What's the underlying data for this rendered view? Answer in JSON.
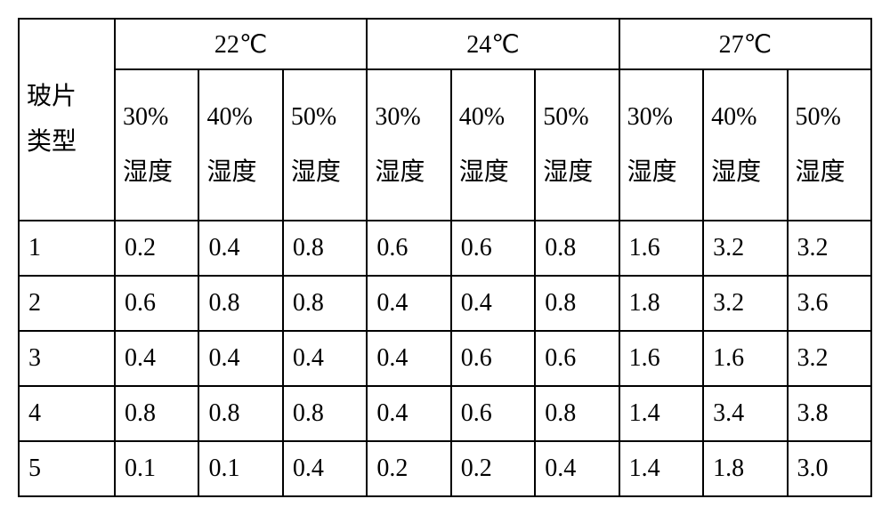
{
  "table": {
    "row_label": "玻片\n类型",
    "temperatures": [
      "22℃",
      "24℃",
      "27℃"
    ],
    "humidities": [
      "30%\n湿度",
      "40%\n湿度",
      "50%\n湿度"
    ],
    "row_indices": [
      "1",
      "2",
      "3",
      "4",
      "5"
    ],
    "data": [
      [
        "0.2",
        "0.4",
        "0.8",
        "0.6",
        "0.6",
        "0.8",
        "1.6",
        "3.2",
        "3.2"
      ],
      [
        "0.6",
        "0.8",
        "0.8",
        "0.4",
        "0.4",
        "0.8",
        "1.8",
        "3.2",
        "3.6"
      ],
      [
        "0.4",
        "0.4",
        "0.4",
        "0.4",
        "0.6",
        "0.6",
        "1.6",
        "1.6",
        "3.2"
      ],
      [
        "0.8",
        "0.8",
        "0.8",
        "0.4",
        "0.6",
        "0.8",
        "1.4",
        "3.4",
        "3.8"
      ],
      [
        "0.1",
        "0.1",
        "0.4",
        "0.2",
        "0.2",
        "0.4",
        "1.4",
        "1.8",
        "3.0"
      ]
    ],
    "colors": {
      "border": "#000000",
      "background": "#ffffff",
      "text": "#000000"
    },
    "font_size_pt": 21
  }
}
